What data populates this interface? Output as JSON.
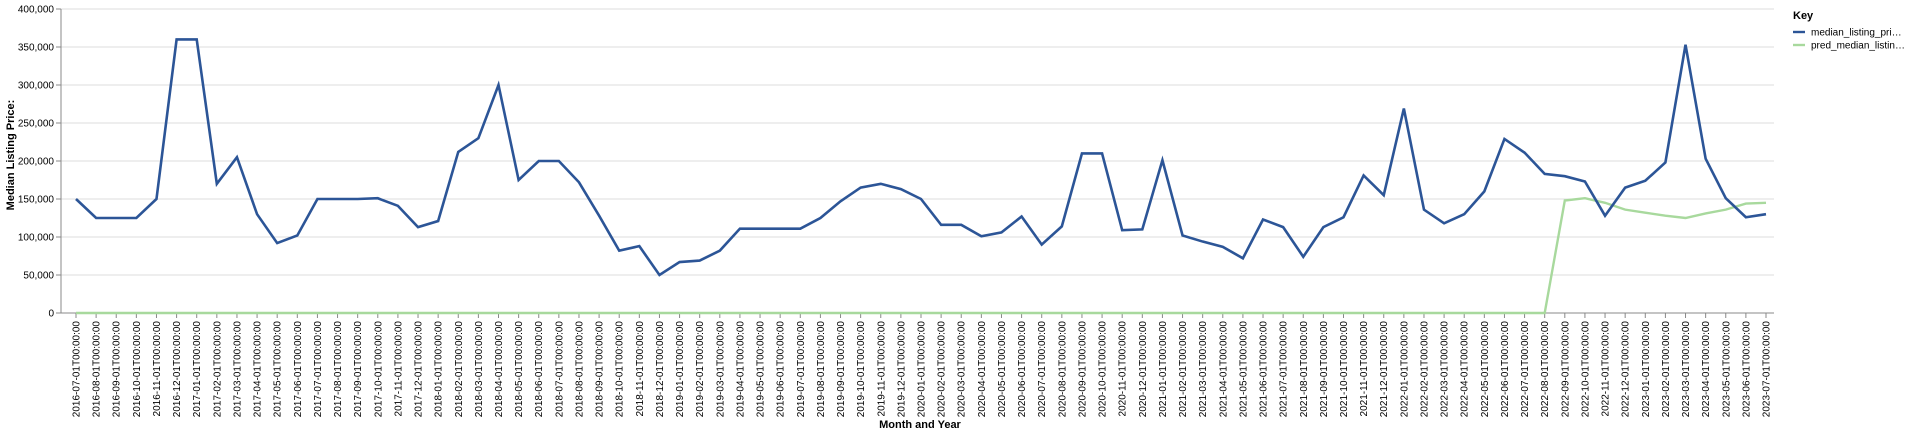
{
  "chart_data": {
    "type": "line",
    "xlabel": "Month and Year",
    "ylabel": "Median Listing Price:",
    "ylim": [
      0,
      400000
    ],
    "y_ticks": [
      "0",
      "50,000",
      "100,000",
      "150,000",
      "200,000",
      "250,000",
      "300,000",
      "350,000",
      "400,000"
    ],
    "grid": "horizontal",
    "legend": {
      "title": "Key",
      "placement": "top-right",
      "entries": [
        "median_listing_pri…",
        "pred_median_listin…"
      ]
    },
    "colors": [
      "#2c5597",
      "#a8d99d"
    ],
    "x": [
      "2016-07-01T00:00:00",
      "2016-08-01T00:00:00",
      "2016-09-01T00:00:00",
      "2016-10-01T00:00:00",
      "2016-11-01T00:00:00",
      "2016-12-01T00:00:00",
      "2017-01-01T00:00:00",
      "2017-02-01T00:00:00",
      "2017-03-01T00:00:00",
      "2017-04-01T00:00:00",
      "2017-05-01T00:00:00",
      "2017-06-01T00:00:00",
      "2017-07-01T00:00:00",
      "2017-08-01T00:00:00",
      "2017-09-01T00:00:00",
      "2017-10-01T00:00:00",
      "2017-11-01T00:00:00",
      "2017-12-01T00:00:00",
      "2018-01-01T00:00:00",
      "2018-02-01T00:00:00",
      "2018-03-01T00:00:00",
      "2018-04-01T00:00:00",
      "2018-05-01T00:00:00",
      "2018-06-01T00:00:00",
      "2018-07-01T00:00:00",
      "2018-08-01T00:00:00",
      "2018-09-01T00:00:00",
      "2018-10-01T00:00:00",
      "2018-11-01T00:00:00",
      "2018-12-01T00:00:00",
      "2019-01-01T00:00:00",
      "2019-02-01T00:00:00",
      "2019-03-01T00:00:00",
      "2019-04-01T00:00:00",
      "2019-05-01T00:00:00",
      "2019-06-01T00:00:00",
      "2019-07-01T00:00:00",
      "2019-08-01T00:00:00",
      "2019-09-01T00:00:00",
      "2019-10-01T00:00:00",
      "2019-11-01T00:00:00",
      "2019-12-01T00:00:00",
      "2020-01-01T00:00:00",
      "2020-02-01T00:00:00",
      "2020-03-01T00:00:00",
      "2020-04-01T00:00:00",
      "2020-05-01T00:00:00",
      "2020-06-01T00:00:00",
      "2020-07-01T00:00:00",
      "2020-08-01T00:00:00",
      "2020-09-01T00:00:00",
      "2020-10-01T00:00:00",
      "2020-11-01T00:00:00",
      "2020-12-01T00:00:00",
      "2021-01-01T00:00:00",
      "2021-02-01T00:00:00",
      "2021-03-01T00:00:00",
      "2021-04-01T00:00:00",
      "2021-05-01T00:00:00",
      "2021-06-01T00:00:00",
      "2021-07-01T00:00:00",
      "2021-08-01T00:00:00",
      "2021-09-01T00:00:00",
      "2021-10-01T00:00:00",
      "2021-11-01T00:00:00",
      "2021-12-01T00:00:00",
      "2022-01-01T00:00:00",
      "2022-02-01T00:00:00",
      "2022-03-01T00:00:00",
      "2022-04-01T00:00:00",
      "2022-05-01T00:00:00",
      "2022-06-01T00:00:00",
      "2022-07-01T00:00:00",
      "2022-08-01T00:00:00",
      "2022-09-01T00:00:00",
      "2022-10-01T00:00:00",
      "2022-11-01T00:00:00",
      "2022-12-01T00:00:00",
      "2023-01-01T00:00:00",
      "2023-02-01T00:00:00",
      "2023-03-01T00:00:00",
      "2023-04-01T00:00:00",
      "2023-05-01T00:00:00",
      "2023-06-01T00:00:00",
      "2023-07-01T00:00:00"
    ],
    "series": [
      {
        "name": "median_listing_pri…",
        "values": [
          150000,
          125000,
          125000,
          125000,
          150000,
          360000,
          360000,
          170000,
          205000,
          130000,
          92000,
          102000,
          150000,
          150000,
          150000,
          151000,
          141000,
          113000,
          121000,
          212000,
          230000,
          300000,
          175000,
          200000,
          200000,
          172000,
          128000,
          82000,
          88000,
          50000,
          67000,
          69000,
          82000,
          111000,
          111000,
          111000,
          111000,
          125000,
          147000,
          165000,
          170000,
          163000,
          150000,
          116000,
          116000,
          101000,
          106000,
          127000,
          90000,
          114000,
          210000,
          210000,
          109000,
          110000,
          201000,
          102000,
          94000,
          87000,
          72000,
          123000,
          113000,
          74000,
          113000,
          126000,
          181000,
          155000,
          269000,
          136000,
          118000,
          130000,
          160000,
          229000,
          211000,
          183000,
          180000,
          173000,
          128000,
          165000,
          174000,
          198000,
          353000,
          203000,
          151000,
          126000,
          130000
        ]
      },
      {
        "name": "pred_median_listin…",
        "values": [
          0,
          0,
          0,
          0,
          0,
          0,
          0,
          0,
          0,
          0,
          0,
          0,
          0,
          0,
          0,
          0,
          0,
          0,
          0,
          0,
          0,
          0,
          0,
          0,
          0,
          0,
          0,
          0,
          0,
          0,
          0,
          0,
          0,
          0,
          0,
          0,
          0,
          0,
          0,
          0,
          0,
          0,
          0,
          0,
          0,
          0,
          0,
          0,
          0,
          0,
          0,
          0,
          0,
          0,
          0,
          0,
          0,
          0,
          0,
          0,
          0,
          0,
          0,
          0,
          0,
          0,
          0,
          0,
          0,
          0,
          0,
          0,
          0,
          0,
          148000,
          151000,
          145000,
          136000,
          132000,
          128000,
          125000,
          131000,
          136000,
          144000,
          145000
        ]
      }
    ]
  }
}
